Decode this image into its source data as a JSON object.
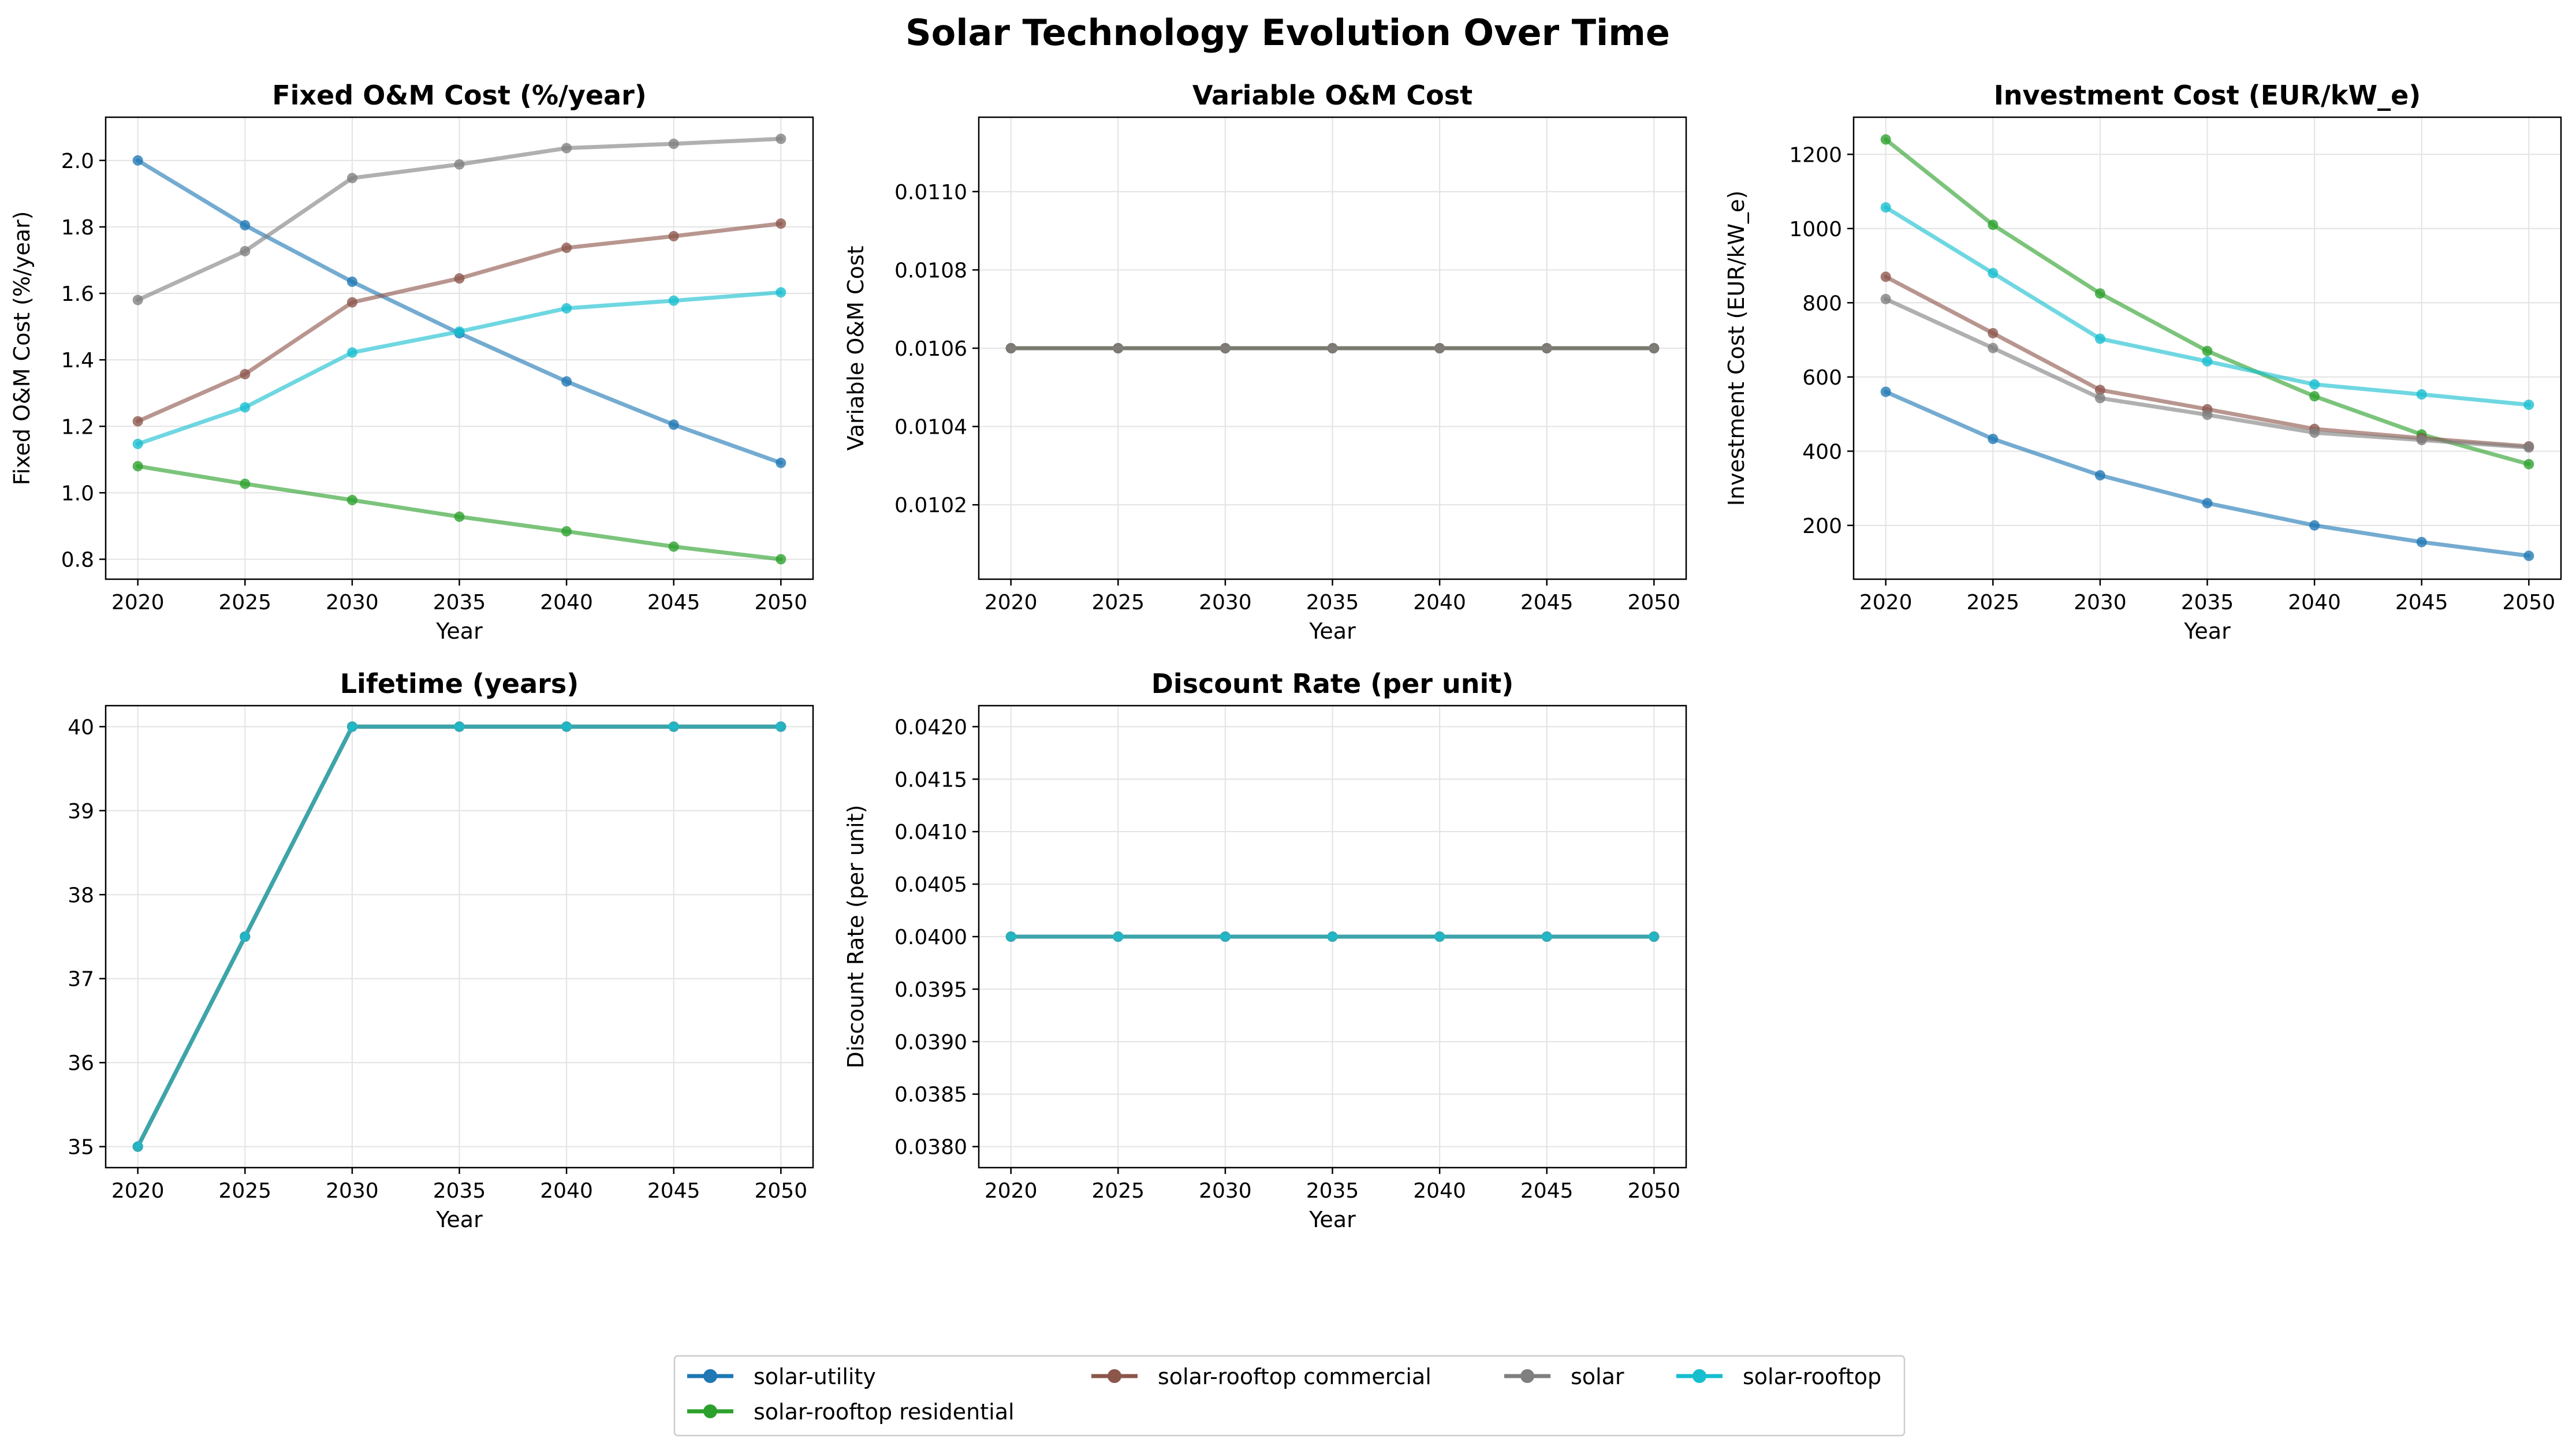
{
  "figure": {
    "title": "Solar Technology Evolution Over Time"
  },
  "series_styles": [
    {
      "key": "solar-utility",
      "name": "solar-utility",
      "color": "#1f77b4"
    },
    {
      "key": "solar-rooftop-residential",
      "name": "solar-rooftop residential",
      "color": "#2ca02c"
    },
    {
      "key": "solar-rooftop-commercial",
      "name": "solar-rooftop commercial",
      "color": "#8c564b"
    },
    {
      "key": "solar",
      "name": "solar",
      "color": "#7f7f7f"
    },
    {
      "key": "solar-rooftop",
      "name": "solar-rooftop",
      "color": "#17becf"
    }
  ],
  "legend": {
    "placement": "bottom-center",
    "columns": 4
  },
  "chart_data": [
    {
      "type": "line",
      "title": "Fixed O&M Cost (%/year)",
      "xlabel": "Year",
      "ylabel": "Fixed O&M Cost (%/year)",
      "x": [
        2020,
        2025,
        2030,
        2035,
        2040,
        2045,
        2050
      ],
      "xlim": [
        2018.5,
        2051.5
      ],
      "ylim": [
        0.74,
        2.13
      ],
      "yticks": [
        "0.8",
        "1.0",
        "1.2",
        "1.4",
        "1.6",
        "1.8",
        "2.0"
      ],
      "grid": true,
      "series": [
        {
          "key": "solar-utility",
          "values": [
            2.0,
            1.805,
            1.635,
            1.48,
            1.335,
            1.205,
            1.09
          ]
        },
        {
          "key": "solar-rooftop-residential",
          "values": [
            1.08,
            1.027,
            0.978,
            0.928,
            0.884,
            0.838,
            0.8
          ]
        },
        {
          "key": "solar-rooftop-commercial",
          "values": [
            1.215,
            1.357,
            1.573,
            1.645,
            1.737,
            1.772,
            1.81
          ]
        },
        {
          "key": "solar",
          "values": [
            1.58,
            1.727,
            1.947,
            1.988,
            2.037,
            2.05,
            2.065
          ]
        },
        {
          "key": "solar-rooftop",
          "values": [
            1.147,
            1.257,
            1.422,
            1.485,
            1.555,
            1.578,
            1.603
          ]
        }
      ]
    },
    {
      "type": "line",
      "title": "Variable O&M Cost",
      "xlabel": "Year",
      "ylabel": "Variable O&M Cost",
      "x": [
        2020,
        2025,
        2030,
        2035,
        2040,
        2045,
        2050
      ],
      "xlim": [
        2018.5,
        2051.5
      ],
      "ylim": [
        0.01001,
        0.01119
      ],
      "yticks": [
        "0.0102",
        "0.0104",
        "0.0106",
        "0.0108",
        "0.0110"
      ],
      "grid": true,
      "series": [
        {
          "key": "solar-utility",
          "values": [
            0.0106,
            0.0106,
            0.0106,
            0.0106,
            0.0106,
            0.0106,
            0.0106
          ]
        },
        {
          "key": "solar-rooftop-residential",
          "values": [
            0.0106,
            0.0106,
            0.0106,
            0.0106,
            0.0106,
            0.0106,
            0.0106
          ]
        },
        {
          "key": "solar-rooftop-commercial",
          "values": [
            0.0106,
            0.0106,
            0.0106,
            0.0106,
            0.0106,
            0.0106,
            0.0106
          ]
        },
        {
          "key": "solar",
          "values": [
            0.0106,
            0.0106,
            0.0106,
            0.0106,
            0.0106,
            0.0106,
            0.0106
          ]
        }
      ]
    },
    {
      "type": "line",
      "title": "Investment Cost (EUR/kW_e)",
      "xlabel": "Year",
      "ylabel": "Investment Cost (EUR/kW_e)",
      "x": [
        2020,
        2025,
        2030,
        2035,
        2040,
        2045,
        2050
      ],
      "xlim": [
        2018.5,
        2051.5
      ],
      "ylim": [
        55,
        1300
      ],
      "yticks": [
        "200",
        "400",
        "600",
        "800",
        "1000",
        "1200"
      ],
      "grid": true,
      "series": [
        {
          "key": "solar-utility",
          "values": [
            560,
            433,
            335,
            260,
            200,
            155,
            118
          ]
        },
        {
          "key": "solar-rooftop-residential",
          "values": [
            1240,
            1010,
            825,
            670,
            548,
            445,
            365
          ]
        },
        {
          "key": "solar-rooftop-commercial",
          "values": [
            870,
            718,
            565,
            513,
            460,
            435,
            413
          ]
        },
        {
          "key": "solar",
          "values": [
            810,
            678,
            543,
            498,
            450,
            430,
            410
          ]
        },
        {
          "key": "solar-rooftop",
          "values": [
            1057,
            880,
            703,
            642,
            580,
            553,
            525
          ]
        }
      ]
    },
    {
      "type": "line",
      "title": "Lifetime (years)",
      "xlabel": "Year",
      "ylabel": "Lifetime (years)",
      "x": [
        2020,
        2025,
        2030,
        2035,
        2040,
        2045,
        2050
      ],
      "xlim": [
        2018.5,
        2051.5
      ],
      "ylim": [
        34.75,
        40.25
      ],
      "yticks": [
        "35",
        "36",
        "37",
        "38",
        "39",
        "40"
      ],
      "grid": true,
      "series": [
        {
          "key": "solar-utility",
          "values": [
            35,
            37.5,
            40,
            40,
            40,
            40,
            40
          ]
        },
        {
          "key": "solar-rooftop-residential",
          "values": [
            35,
            37.5,
            40,
            40,
            40,
            40,
            40
          ]
        },
        {
          "key": "solar-rooftop-commercial",
          "values": [
            35,
            37.5,
            40,
            40,
            40,
            40,
            40
          ]
        },
        {
          "key": "solar",
          "values": [
            35,
            37.5,
            40,
            40,
            40,
            40,
            40
          ]
        },
        {
          "key": "solar-rooftop",
          "values": [
            35,
            37.5,
            40,
            40,
            40,
            40,
            40
          ]
        }
      ]
    },
    {
      "type": "line",
      "title": "Discount Rate (per unit)",
      "xlabel": "Year",
      "ylabel": "Discount Rate (per unit)",
      "x": [
        2020,
        2025,
        2030,
        2035,
        2040,
        2045,
        2050
      ],
      "xlim": [
        2018.5,
        2051.5
      ],
      "ylim": [
        0.0378,
        0.0422
      ],
      "yticks": [
        "0.0380",
        "0.0385",
        "0.0390",
        "0.0395",
        "0.0400",
        "0.0405",
        "0.0410",
        "0.0415",
        "0.0420"
      ],
      "grid": true,
      "series": [
        {
          "key": "solar-utility",
          "values": [
            0.04,
            0.04,
            0.04,
            0.04,
            0.04,
            0.04,
            0.04
          ]
        },
        {
          "key": "solar-rooftop-residential",
          "values": [
            0.04,
            0.04,
            0.04,
            0.04,
            0.04,
            0.04,
            0.04
          ]
        },
        {
          "key": "solar-rooftop-commercial",
          "values": [
            0.04,
            0.04,
            0.04,
            0.04,
            0.04,
            0.04,
            0.04
          ]
        },
        {
          "key": "solar",
          "values": [
            0.04,
            0.04,
            0.04,
            0.04,
            0.04,
            0.04,
            0.04
          ]
        },
        {
          "key": "solar-rooftop",
          "values": [
            0.04,
            0.04,
            0.04,
            0.04,
            0.04,
            0.04,
            0.04
          ]
        }
      ]
    }
  ]
}
